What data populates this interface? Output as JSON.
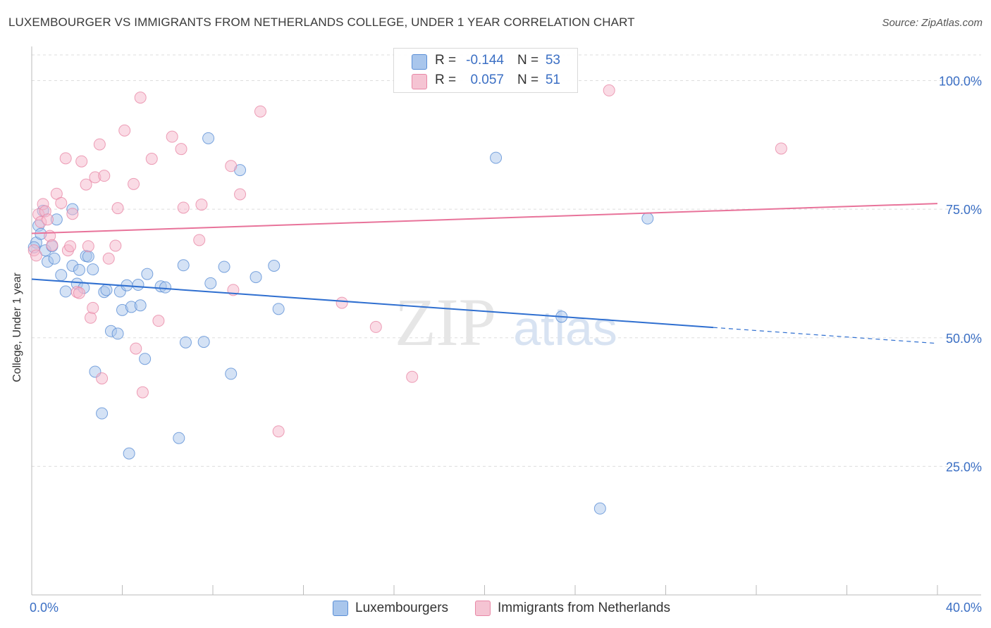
{
  "title": "LUXEMBOURGER VS IMMIGRANTS FROM NETHERLANDS COLLEGE, UNDER 1 YEAR CORRELATION CHART",
  "source": "Source: ZipAtlas.com",
  "watermark": {
    "zip": "ZIP",
    "atlas": "atlas"
  },
  "colors": {
    "blue_fill": "#a9c6ec",
    "blue_stroke": "#5b8fd6",
    "blue_line": "#2f6fd0",
    "pink_fill": "#f5b8cb",
    "pink_stroke": "#e888a6",
    "pink_line": "#e8739a",
    "axis_text": "#3b6fc4",
    "grid": "#dddddd"
  },
  "legend": {
    "rows": [
      {
        "r_label": "R =",
        "r_value": "-0.144",
        "n_label": "N =",
        "n_value": "53"
      },
      {
        "r_label": "R =",
        "r_value": "0.057",
        "n_label": "N =",
        "n_value": "51"
      }
    ]
  },
  "bottom_legend": [
    "Luxembourgers",
    "Immigrants from Netherlands"
  ],
  "chart_data": {
    "type": "scatter",
    "title": "LUXEMBOURGER VS IMMIGRANTS FROM NETHERLANDS COLLEGE, UNDER 1 YEAR CORRELATION CHART",
    "xlabel": "",
    "ylabel": "College, Under 1 year",
    "xlim": [
      0,
      40
    ],
    "ylim": [
      0,
      105
    ],
    "x_tick_labels": [
      "0.0%",
      "40.0%"
    ],
    "y_ticks": [
      25,
      50,
      75,
      100
    ],
    "y_tick_labels": [
      "25.0%",
      "50.0%",
      "75.0%",
      "100.0%"
    ],
    "grid": true,
    "series": [
      {
        "name": "Luxembourgers",
        "color": "blue",
        "r": -0.144,
        "n": 53,
        "trend": {
          "x0": 0,
          "y0": 61.4,
          "x1": 30.1,
          "y1": 52.0,
          "dash_to_x": 40,
          "dash_to_y": 48.9
        },
        "points": [
          [
            0.2,
            68.5
          ],
          [
            0.3,
            71.8
          ],
          [
            0.5,
            74.7
          ],
          [
            0.6,
            67.0
          ],
          [
            0.7,
            64.8
          ],
          [
            0.9,
            67.8
          ],
          [
            1.0,
            65.4
          ],
          [
            1.1,
            73.0
          ],
          [
            1.3,
            62.2
          ],
          [
            1.5,
            59.0
          ],
          [
            1.8,
            75.0
          ],
          [
            1.8,
            64.0
          ],
          [
            2.0,
            60.5
          ],
          [
            2.1,
            63.2
          ],
          [
            2.3,
            59.7
          ],
          [
            2.4,
            65.9
          ],
          [
            2.5,
            65.8
          ],
          [
            2.7,
            63.3
          ],
          [
            2.8,
            43.4
          ],
          [
            3.1,
            35.3
          ],
          [
            3.2,
            58.9
          ],
          [
            3.3,
            59.3
          ],
          [
            3.5,
            51.3
          ],
          [
            3.8,
            50.8
          ],
          [
            3.9,
            59.0
          ],
          [
            4.0,
            55.4
          ],
          [
            4.2,
            60.2
          ],
          [
            4.3,
            27.5
          ],
          [
            4.4,
            56.0
          ],
          [
            4.7,
            60.3
          ],
          [
            4.8,
            56.3
          ],
          [
            5.0,
            45.9
          ],
          [
            5.1,
            62.4
          ],
          [
            5.7,
            60.0
          ],
          [
            5.9,
            59.8
          ],
          [
            6.5,
            30.5
          ],
          [
            6.7,
            64.1
          ],
          [
            6.8,
            49.1
          ],
          [
            7.6,
            49.2
          ],
          [
            7.8,
            88.8
          ],
          [
            7.9,
            60.6
          ],
          [
            8.5,
            63.8
          ],
          [
            8.8,
            43.0
          ],
          [
            9.2,
            82.6
          ],
          [
            9.9,
            61.8
          ],
          [
            10.7,
            64.0
          ],
          [
            10.9,
            55.6
          ],
          [
            20.5,
            85.0
          ],
          [
            23.4,
            54.1
          ],
          [
            25.1,
            16.8
          ],
          [
            27.2,
            73.2
          ],
          [
            0.1,
            67.6
          ],
          [
            0.4,
            70.2
          ]
        ]
      },
      {
        "name": "Immigrants from Netherlands",
        "color": "pink",
        "r": 0.057,
        "n": 51,
        "trend": {
          "x0": 0,
          "y0": 70.3,
          "x1": 40,
          "y1": 76.1
        },
        "points": [
          [
            0.1,
            67.0
          ],
          [
            0.3,
            74.0
          ],
          [
            0.4,
            72.5
          ],
          [
            0.5,
            76.0
          ],
          [
            0.6,
            74.6
          ],
          [
            0.7,
            73.0
          ],
          [
            0.8,
            69.8
          ],
          [
            0.9,
            68.0
          ],
          [
            1.1,
            78.0
          ],
          [
            1.3,
            76.2
          ],
          [
            1.5,
            84.9
          ],
          [
            1.6,
            67.0
          ],
          [
            1.7,
            67.8
          ],
          [
            1.8,
            74.1
          ],
          [
            2.0,
            58.9
          ],
          [
            2.1,
            58.7
          ],
          [
            2.2,
            84.3
          ],
          [
            2.4,
            79.8
          ],
          [
            2.5,
            67.8
          ],
          [
            2.6,
            53.9
          ],
          [
            2.7,
            55.8
          ],
          [
            2.8,
            81.2
          ],
          [
            3.0,
            87.6
          ],
          [
            3.1,
            42.1
          ],
          [
            3.2,
            81.5
          ],
          [
            3.4,
            65.4
          ],
          [
            3.7,
            67.9
          ],
          [
            3.8,
            75.2
          ],
          [
            4.1,
            90.3
          ],
          [
            4.5,
            79.9
          ],
          [
            4.6,
            47.9
          ],
          [
            4.8,
            96.7
          ],
          [
            4.9,
            39.4
          ],
          [
            5.3,
            84.8
          ],
          [
            5.6,
            53.3
          ],
          [
            6.2,
            89.1
          ],
          [
            6.6,
            86.7
          ],
          [
            6.7,
            75.3
          ],
          [
            7.4,
            69.0
          ],
          [
            7.5,
            75.9
          ],
          [
            8.8,
            83.4
          ],
          [
            8.9,
            59.3
          ],
          [
            9.2,
            77.9
          ],
          [
            10.1,
            94.0
          ],
          [
            10.9,
            31.8
          ],
          [
            13.7,
            56.8
          ],
          [
            15.2,
            52.1
          ],
          [
            16.8,
            42.4
          ],
          [
            25.5,
            98.1
          ],
          [
            33.1,
            86.8
          ],
          [
            0.2,
            66.0
          ]
        ]
      }
    ]
  }
}
